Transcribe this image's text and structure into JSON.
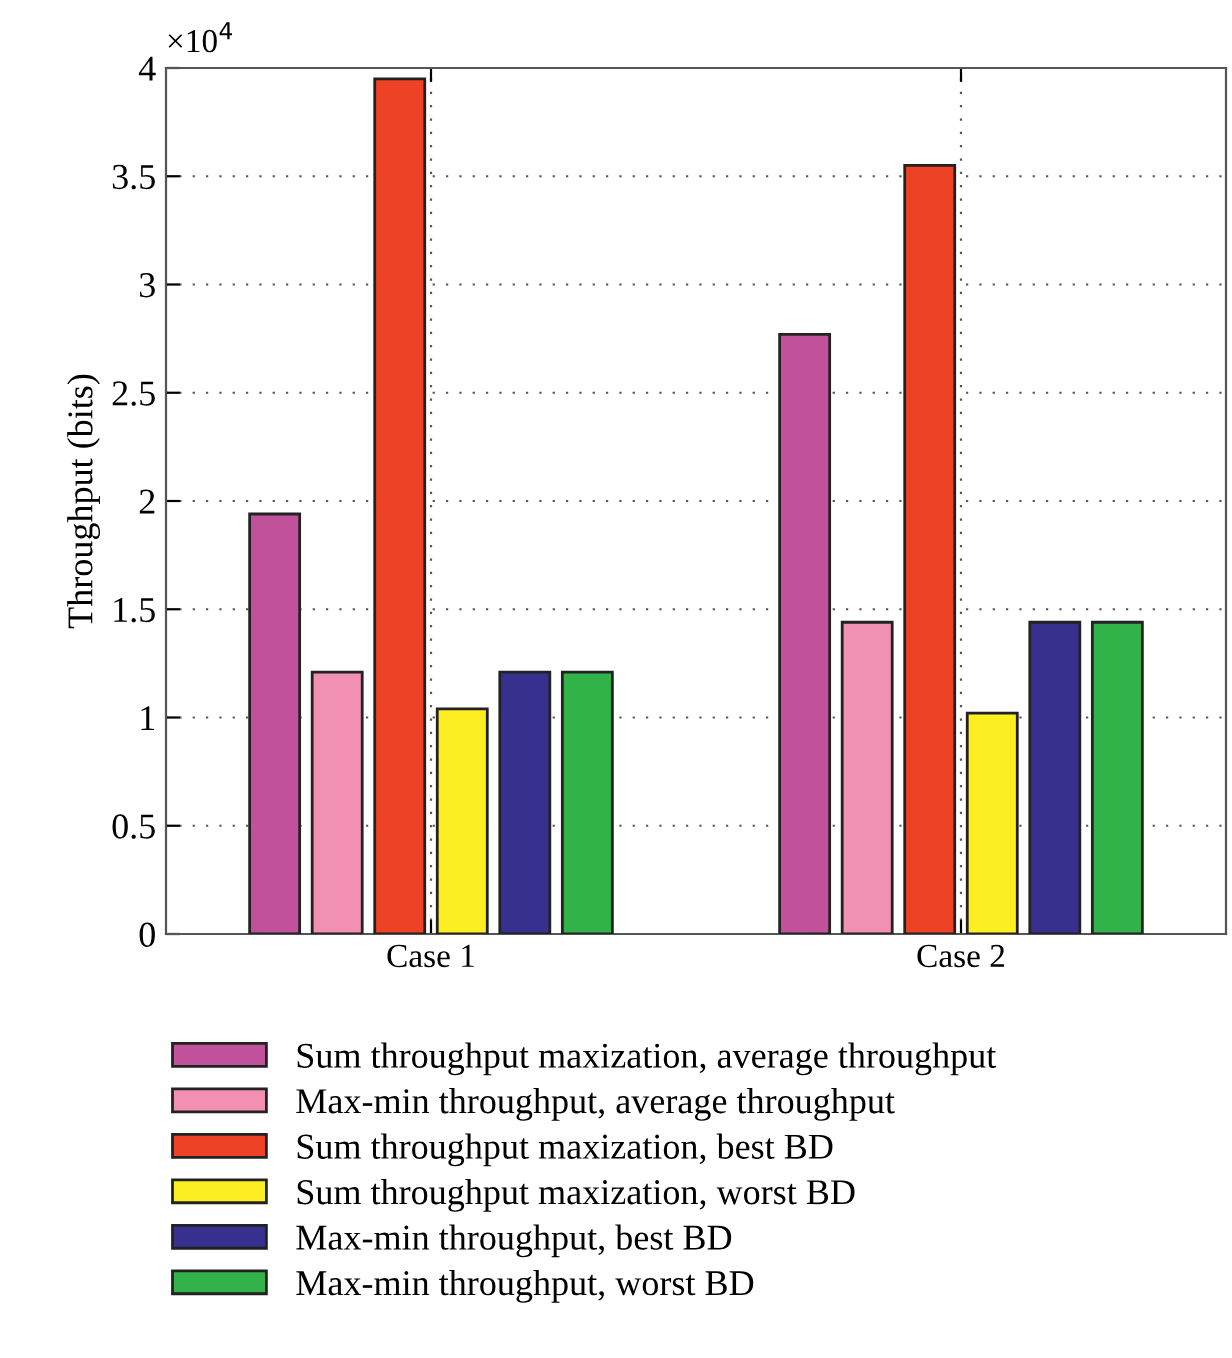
{
  "chart_data": {
    "type": "bar",
    "ylabel": "Throughput (bits)",
    "categories": [
      "Case 1",
      "Case 2"
    ],
    "series": [
      {
        "name": "Sum throughput maxization, average throughput",
        "color": "#c2519c",
        "values": [
          1.94,
          2.77
        ]
      },
      {
        "name": "Max-min throughput, average throughput",
        "color": "#f190b2",
        "values": [
          1.21,
          1.44
        ]
      },
      {
        "name": "Sum throughput maxization, best BD",
        "color": "#ee4227",
        "values": [
          3.95,
          3.55
        ]
      },
      {
        "name": "Sum throughput maxization, worst BD",
        "color": "#fcee21",
        "values": [
          1.04,
          1.02
        ]
      },
      {
        "name": "Max-min throughput, best BD",
        "color": "#38308f",
        "values": [
          1.21,
          1.44
        ]
      },
      {
        "name": "Max-min throughput, worst BD",
        "color": "#32b34a",
        "values": [
          1.21,
          1.44
        ]
      }
    ],
    "ylim": [
      0,
      4
    ],
    "yticks": [
      0,
      0.5,
      1,
      1.5,
      2,
      2.5,
      3,
      3.5,
      4
    ],
    "annotations": [
      "×10$^{4}$"
    ],
    "grid": true,
    "legend": "bottom"
  }
}
